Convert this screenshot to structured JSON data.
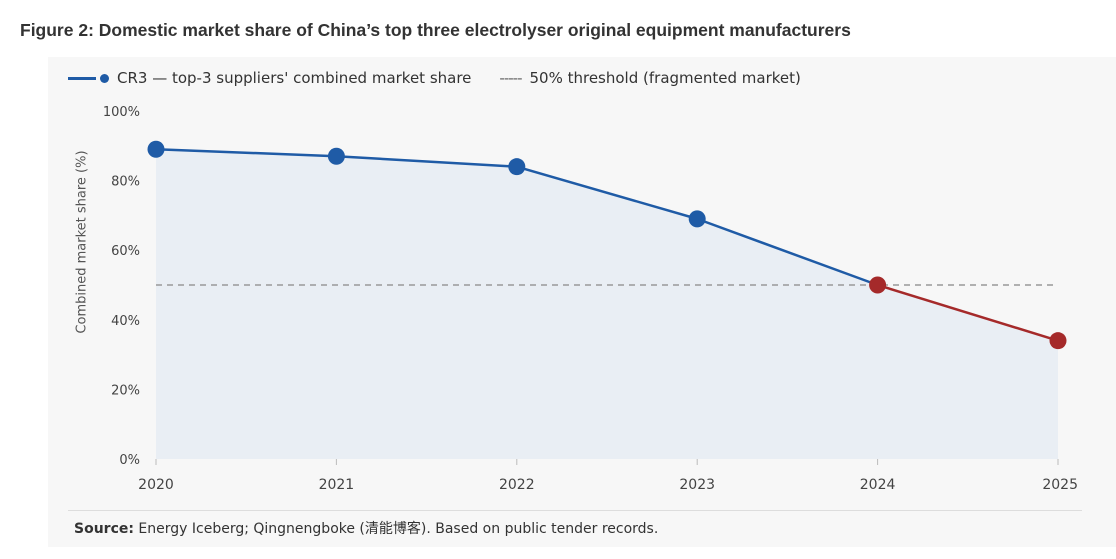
{
  "figure_title": "Figure 2: Domestic market share of China’s top three electrolyser original equipment manufacturers",
  "legend": {
    "series_label": "CR3 — top-3 suppliers' combined market share",
    "threshold_glyph": "-----",
    "threshold_label": "50% threshold (fragmented market)"
  },
  "source": {
    "label": "Source:",
    "text": " Energy Iceberg; Qingnengboke (清能博客). Based on public tender records."
  },
  "colors": {
    "primary": "#1f5ba6",
    "highlight": "#a52a2a",
    "threshold": "#999999",
    "area": "#e9eef4"
  },
  "chart_data": {
    "type": "line",
    "title": "",
    "xlabel": "",
    "ylabel": "Combined market share (%)",
    "x": [
      "2020",
      "2021",
      "2022",
      "2023",
      "2024",
      "2025"
    ],
    "series": [
      {
        "name": "CR3 — top-3 suppliers' combined market share",
        "values": [
          89,
          87,
          84,
          69,
          50,
          34
        ]
      }
    ],
    "highlight_from_index": 4,
    "threshold": {
      "value": 50,
      "label": "50% threshold (fragmented market)"
    },
    "ylim": [
      0,
      100
    ],
    "yticks": [
      0,
      20,
      40,
      60,
      80,
      100
    ],
    "ytick_labels": [
      "0%",
      "20%",
      "40%",
      "60%",
      "80%",
      "100%"
    ],
    "area_fill": true,
    "grid": false,
    "legend_position": "top-left"
  }
}
